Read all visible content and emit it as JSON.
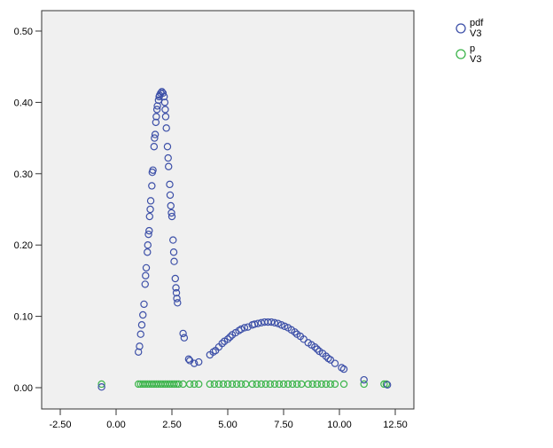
{
  "chart_data": {
    "type": "scatter",
    "title": "",
    "xlabel": "",
    "ylabel": "",
    "xlim": [
      -3.3,
      13.3
    ],
    "ylim": [
      -0.03,
      0.53
    ],
    "x_ticks": [
      -2.5,
      0,
      2.5,
      5,
      7.5,
      10,
      12.5
    ],
    "x_tick_labels": [
      "-2.50",
      "0.00",
      "2.50",
      "5.00",
      "7.50",
      "10.00",
      "12.50"
    ],
    "y_ticks": [
      0,
      0.1,
      0.2,
      0.3,
      0.4,
      0.5
    ],
    "y_tick_labels": [
      "0.00",
      "0.10",
      "0.20",
      "0.30",
      "0.40",
      "0.50"
    ],
    "grid": false,
    "legend_position": "top-right",
    "series": [
      {
        "name": "pdf",
        "sub": "V3",
        "color": "#3d50a8",
        "points": [
          [
            -0.65,
            0.001
          ],
          [
            1.0,
            0.05
          ],
          [
            1.05,
            0.058
          ],
          [
            1.1,
            0.075
          ],
          [
            1.15,
            0.088
          ],
          [
            1.2,
            0.102
          ],
          [
            1.25,
            0.117
          ],
          [
            1.3,
            0.145
          ],
          [
            1.32,
            0.157
          ],
          [
            1.35,
            0.168
          ],
          [
            1.4,
            0.19
          ],
          [
            1.42,
            0.2
          ],
          [
            1.45,
            0.215
          ],
          [
            1.48,
            0.22
          ],
          [
            1.5,
            0.24
          ],
          [
            1.53,
            0.25
          ],
          [
            1.55,
            0.262
          ],
          [
            1.6,
            0.283
          ],
          [
            1.62,
            0.302
          ],
          [
            1.65,
            0.305
          ],
          [
            1.7,
            0.338
          ],
          [
            1.72,
            0.35
          ],
          [
            1.75,
            0.355
          ],
          [
            1.78,
            0.372
          ],
          [
            1.8,
            0.38
          ],
          [
            1.83,
            0.39
          ],
          [
            1.85,
            0.395
          ],
          [
            1.9,
            0.403
          ],
          [
            1.93,
            0.408
          ],
          [
            1.95,
            0.41
          ],
          [
            2.0,
            0.413
          ],
          [
            2.05,
            0.415
          ],
          [
            2.1,
            0.413
          ],
          [
            2.15,
            0.408
          ],
          [
            2.18,
            0.4
          ],
          [
            2.2,
            0.39
          ],
          [
            2.22,
            0.38
          ],
          [
            2.25,
            0.364
          ],
          [
            2.3,
            0.338
          ],
          [
            2.33,
            0.322
          ],
          [
            2.35,
            0.31
          ],
          [
            2.4,
            0.285
          ],
          [
            2.42,
            0.27
          ],
          [
            2.45,
            0.255
          ],
          [
            2.48,
            0.245
          ],
          [
            2.5,
            0.24
          ],
          [
            2.55,
            0.207
          ],
          [
            2.58,
            0.19
          ],
          [
            2.6,
            0.177
          ],
          [
            2.65,
            0.153
          ],
          [
            2.68,
            0.14
          ],
          [
            2.7,
            0.133
          ],
          [
            2.72,
            0.125
          ],
          [
            2.75,
            0.119
          ],
          [
            3.0,
            0.076
          ],
          [
            3.05,
            0.07
          ],
          [
            3.25,
            0.04
          ],
          [
            3.3,
            0.038
          ],
          [
            3.5,
            0.034
          ],
          [
            3.7,
            0.036
          ],
          [
            4.2,
            0.046
          ],
          [
            4.35,
            0.05
          ],
          [
            4.45,
            0.052
          ],
          [
            4.6,
            0.057
          ],
          [
            4.75,
            0.062
          ],
          [
            4.85,
            0.065
          ],
          [
            5.0,
            0.068
          ],
          [
            5.1,
            0.071
          ],
          [
            5.2,
            0.074
          ],
          [
            5.35,
            0.077
          ],
          [
            5.5,
            0.08
          ],
          [
            5.6,
            0.082
          ],
          [
            5.75,
            0.084
          ],
          [
            5.9,
            0.085
          ],
          [
            6.1,
            0.088
          ],
          [
            6.2,
            0.089
          ],
          [
            6.35,
            0.09
          ],
          [
            6.5,
            0.091
          ],
          [
            6.65,
            0.092
          ],
          [
            6.8,
            0.092
          ],
          [
            6.95,
            0.092
          ],
          [
            7.1,
            0.091
          ],
          [
            7.25,
            0.09
          ],
          [
            7.4,
            0.088
          ],
          [
            7.55,
            0.086
          ],
          [
            7.7,
            0.084
          ],
          [
            7.85,
            0.081
          ],
          [
            8.0,
            0.078
          ],
          [
            8.1,
            0.075
          ],
          [
            8.25,
            0.072
          ],
          [
            8.4,
            0.068
          ],
          [
            8.6,
            0.063
          ],
          [
            8.75,
            0.06
          ],
          [
            8.9,
            0.057
          ],
          [
            9.0,
            0.054
          ],
          [
            9.1,
            0.051
          ],
          [
            9.25,
            0.048
          ],
          [
            9.4,
            0.044
          ],
          [
            9.5,
            0.041
          ],
          [
            9.6,
            0.039
          ],
          [
            9.8,
            0.034
          ],
          [
            10.1,
            0.028
          ],
          [
            10.2,
            0.026
          ],
          [
            11.1,
            0.011
          ],
          [
            12.15,
            0.004
          ]
        ]
      },
      {
        "name": "p",
        "sub": "V3",
        "color": "#3cb44b",
        "points": [
          [
            -0.65,
            0.005
          ],
          [
            1.0,
            0.005
          ],
          [
            1.1,
            0.005
          ],
          [
            1.2,
            0.005
          ],
          [
            1.3,
            0.005
          ],
          [
            1.4,
            0.005
          ],
          [
            1.5,
            0.005
          ],
          [
            1.6,
            0.005
          ],
          [
            1.7,
            0.005
          ],
          [
            1.8,
            0.005
          ],
          [
            1.9,
            0.005
          ],
          [
            2.0,
            0.005
          ],
          [
            2.1,
            0.005
          ],
          [
            2.2,
            0.005
          ],
          [
            2.3,
            0.005
          ],
          [
            2.4,
            0.005
          ],
          [
            2.5,
            0.005
          ],
          [
            2.6,
            0.005
          ],
          [
            2.7,
            0.005
          ],
          [
            2.8,
            0.005
          ],
          [
            3.0,
            0.005
          ],
          [
            3.3,
            0.005
          ],
          [
            3.5,
            0.005
          ],
          [
            3.7,
            0.005
          ],
          [
            4.2,
            0.005
          ],
          [
            4.4,
            0.005
          ],
          [
            4.6,
            0.005
          ],
          [
            4.8,
            0.005
          ],
          [
            5.0,
            0.005
          ],
          [
            5.2,
            0.005
          ],
          [
            5.4,
            0.005
          ],
          [
            5.6,
            0.005
          ],
          [
            5.8,
            0.005
          ],
          [
            6.1,
            0.005
          ],
          [
            6.3,
            0.005
          ],
          [
            6.5,
            0.005
          ],
          [
            6.7,
            0.005
          ],
          [
            6.9,
            0.005
          ],
          [
            7.1,
            0.005
          ],
          [
            7.3,
            0.005
          ],
          [
            7.5,
            0.005
          ],
          [
            7.7,
            0.005
          ],
          [
            7.9,
            0.005
          ],
          [
            8.1,
            0.005
          ],
          [
            8.3,
            0.005
          ],
          [
            8.6,
            0.005
          ],
          [
            8.8,
            0.005
          ],
          [
            9.0,
            0.005
          ],
          [
            9.2,
            0.005
          ],
          [
            9.4,
            0.005
          ],
          [
            9.6,
            0.005
          ],
          [
            9.8,
            0.005
          ],
          [
            10.2,
            0.005
          ],
          [
            11.1,
            0.005
          ],
          [
            12.0,
            0.005
          ],
          [
            12.1,
            0.005
          ]
        ]
      }
    ]
  }
}
